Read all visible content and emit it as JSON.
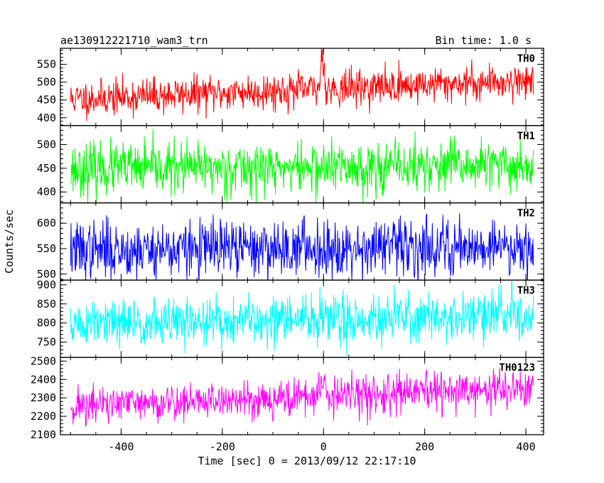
{
  "chart_data": {
    "type": "line",
    "title": "ae130912221710_wam3_trn",
    "subtitle": "Bin time: 1.0 s",
    "xlabel": "Time [sec] 0 = 2013/09/12 22:17:10",
    "ylabel": "Counts/sec",
    "xlim": [
      -520,
      435
    ],
    "x_ticks": [
      -400,
      -200,
      0,
      200,
      400
    ],
    "x_range": [
      -500,
      415
    ],
    "grid": false,
    "panels": [
      {
        "name": "TH0",
        "color": "#ff0000",
        "ylim": [
          378,
          595
        ],
        "yticks": [
          400,
          450,
          500,
          550
        ],
        "base_start": 452,
        "base_end": 505,
        "noise": 25,
        "seed": 11,
        "features": [
          {
            "x": -2,
            "peak": 590,
            "width": 4
          }
        ]
      },
      {
        "name": "TH1",
        "color": "#00ff00",
        "ylim": [
          377,
          540
        ],
        "yticks": [
          400,
          450,
          500
        ],
        "base_start": 448,
        "base_end": 455,
        "noise": 27,
        "seed": 23,
        "features": []
      },
      {
        "name": "TH2",
        "color": "#0000ff",
        "ylim": [
          488,
          640
        ],
        "yticks": [
          500,
          550,
          600
        ],
        "base_start": 547,
        "base_end": 556,
        "noise": 28,
        "seed": 37,
        "features": []
      },
      {
        "name": "TH3",
        "color": "#00ffff",
        "ylim": [
          710,
          912
        ],
        "yticks": [
          750,
          800,
          850,
          900
        ],
        "base_start": 795,
        "base_end": 822,
        "noise": 32,
        "seed": 51,
        "features": []
      },
      {
        "name": "TH0123",
        "color": "#ff00ff",
        "ylim": [
          2100,
          2520
        ],
        "yticks": [
          2100,
          2200,
          2300,
          2400,
          2500
        ],
        "base_start": 2255,
        "base_end": 2350,
        "noise": 52,
        "seed": 71,
        "features": [
          {
            "x": 0,
            "peak": 2400,
            "width": 6
          }
        ]
      }
    ]
  }
}
